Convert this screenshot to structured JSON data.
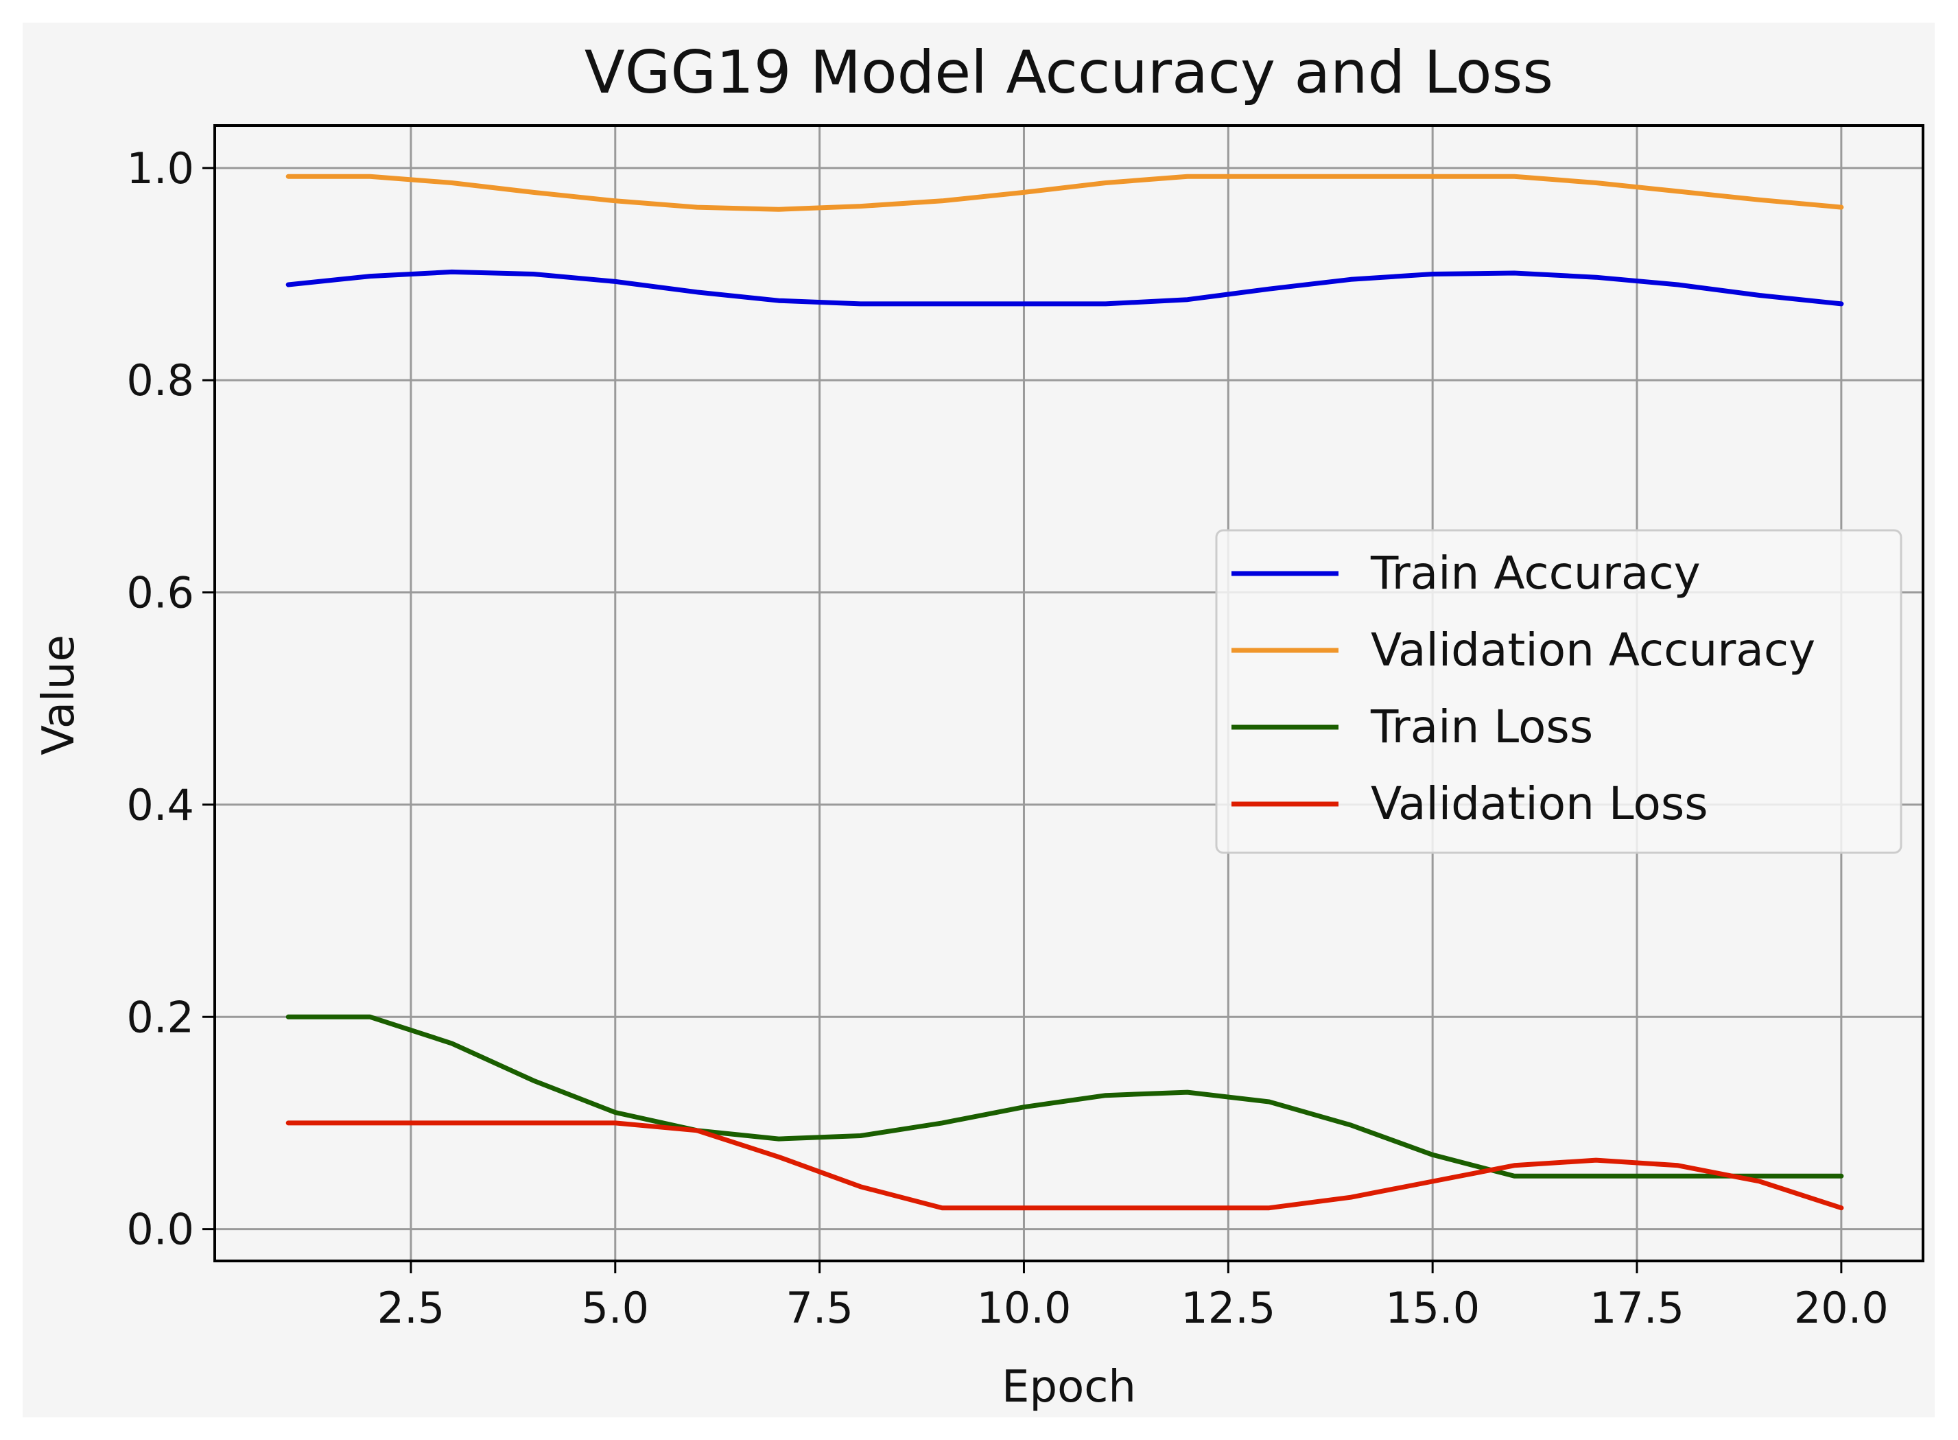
{
  "chart_data": {
    "type": "line",
    "title": "VGG19 Model Accuracy and Loss",
    "xlabel": "Epoch",
    "ylabel": "Value",
    "xlim": [
      0.1,
      21.0
    ],
    "ylim": [
      -0.03,
      1.04
    ],
    "grid": true,
    "legend_position": "center-right",
    "x_ticks": [
      2.5,
      5.0,
      7.5,
      10.0,
      12.5,
      15.0,
      17.5,
      20.0
    ],
    "x_tick_labels": [
      "2.5",
      "5.0",
      "7.5",
      "10.0",
      "12.5",
      "15.0",
      "17.5",
      "20.0"
    ],
    "y_ticks": [
      0.0,
      0.2,
      0.4,
      0.6,
      0.8,
      1.0
    ],
    "y_tick_labels": [
      "0.0",
      "0.2",
      "0.4",
      "0.6",
      "0.8",
      "1.0"
    ],
    "x": [
      1,
      2,
      3,
      4,
      5,
      6,
      7,
      8,
      9,
      10,
      11,
      12,
      13,
      14,
      15,
      16,
      17,
      18,
      19,
      20
    ],
    "series": [
      {
        "name": "Train Accuracy",
        "color": "#0000dd",
        "values": [
          0.89,
          0.898,
          0.902,
          0.9,
          0.893,
          0.883,
          0.875,
          0.872,
          0.872,
          0.872,
          0.872,
          0.876,
          0.886,
          0.895,
          0.9,
          0.901,
          0.897,
          0.89,
          0.88,
          0.872
        ]
      },
      {
        "name": "Validation Accuracy",
        "color": "#f0962a",
        "values": [
          0.992,
          0.992,
          0.986,
          0.977,
          0.969,
          0.963,
          0.961,
          0.964,
          0.969,
          0.977,
          0.986,
          0.992,
          0.992,
          0.992,
          0.992,
          0.992,
          0.986,
          0.978,
          0.97,
          0.963
        ]
      },
      {
        "name": "Train Loss",
        "color": "#1a5e00",
        "values": [
          0.2,
          0.2,
          0.175,
          0.14,
          0.11,
          0.093,
          0.085,
          0.088,
          0.1,
          0.115,
          0.126,
          0.129,
          0.12,
          0.098,
          0.07,
          0.05,
          0.05,
          0.05,
          0.05,
          0.05
        ]
      },
      {
        "name": "Validation Loss",
        "color": "#dd1c00",
        "values": [
          0.1,
          0.1,
          0.1,
          0.1,
          0.1,
          0.093,
          0.068,
          0.04,
          0.02,
          0.02,
          0.02,
          0.02,
          0.02,
          0.03,
          0.045,
          0.06,
          0.065,
          0.06,
          0.045,
          0.02
        ]
      }
    ]
  }
}
